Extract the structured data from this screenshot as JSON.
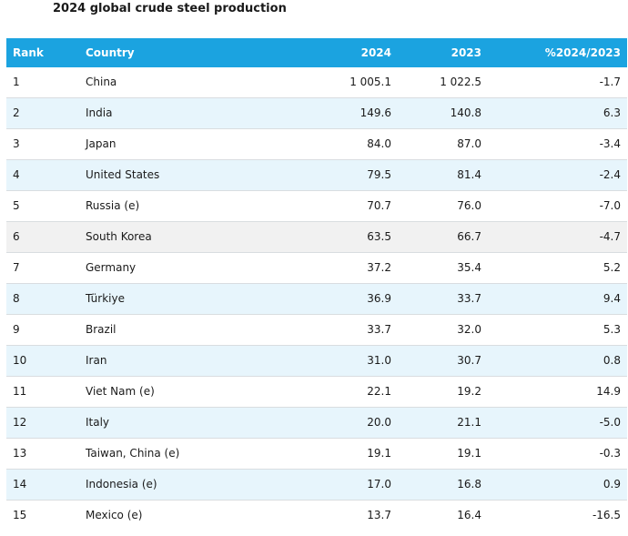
{
  "page": {
    "title": "2024 global crude steel production"
  },
  "table": {
    "headers": {
      "rank": "Rank",
      "country": "Country",
      "y2024": "2024",
      "y2023": "2023",
      "pct": "%2024/2023"
    },
    "rows": [
      {
        "rank": "1",
        "country": "China",
        "y2024": "1 005.1",
        "y2023": "1 022.5",
        "pct": "-1.7"
      },
      {
        "rank": "2",
        "country": "India",
        "y2024": "149.6",
        "y2023": "140.8",
        "pct": "6.3"
      },
      {
        "rank": "3",
        "country": "Japan",
        "y2024": "84.0",
        "y2023": "87.0",
        "pct": "-3.4"
      },
      {
        "rank": "4",
        "country": "United States",
        "y2024": "79.5",
        "y2023": "81.4",
        "pct": "-2.4"
      },
      {
        "rank": "5",
        "country": "Russia (e)",
        "y2024": "70.7",
        "y2023": "76.0",
        "pct": "-7.0"
      },
      {
        "rank": "6",
        "country": "South Korea",
        "y2024": "63.5",
        "y2023": "66.7",
        "pct": "-4.7"
      },
      {
        "rank": "7",
        "country": "Germany",
        "y2024": "37.2",
        "y2023": "35.4",
        "pct": "5.2"
      },
      {
        "rank": "8",
        "country": "Türkiye",
        "y2024": "36.9",
        "y2023": "33.7",
        "pct": "9.4"
      },
      {
        "rank": "9",
        "country": "Brazil",
        "y2024": "33.7",
        "y2023": "32.0",
        "pct": "5.3"
      },
      {
        "rank": "10",
        "country": "Iran",
        "y2024": "31.0",
        "y2023": "30.7",
        "pct": "0.8"
      },
      {
        "rank": "11",
        "country": "Viet Nam (e)",
        "y2024": "22.1",
        "y2023": "19.2",
        "pct": "14.9"
      },
      {
        "rank": "12",
        "country": "Italy",
        "y2024": "20.0",
        "y2023": "21.1",
        "pct": "-5.0"
      },
      {
        "rank": "13",
        "country": "Taiwan, China (e)",
        "y2024": "19.1",
        "y2023": "19.1",
        "pct": "-0.3"
      },
      {
        "rank": "14",
        "country": "Indonesia (e)",
        "y2024": "17.0",
        "y2023": "16.8",
        "pct": "0.9"
      },
      {
        "rank": "15",
        "country": "Mexico (e)",
        "y2024": "13.7",
        "y2023": "16.4",
        "pct": "-16.5"
      }
    ]
  },
  "colors": {
    "header_bg": "#1ba3e0",
    "header_text": "#ffffff",
    "stripe_blue": "#e7f5fc",
    "stripe_grey": "#f1f1f1",
    "divider": "#d9dde0"
  }
}
